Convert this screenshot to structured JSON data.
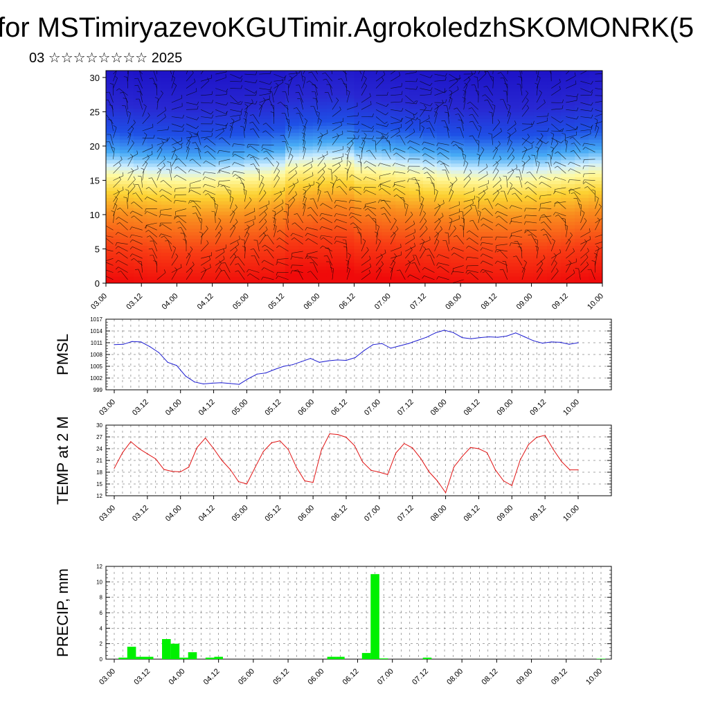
{
  "header": {
    "title": "for MSTimiryazevoKGUTimir.AgrokoledzhSKOMONRK(5",
    "subtitle": "03 ☆☆☆☆☆☆☆☆ 2025"
  },
  "colors": {
    "pmsl_line": "#1c1cd0",
    "temp_line": "#e01010",
    "precip_bar": "#00f000",
    "axis": "#000000"
  },
  "chart_data": [
    {
      "type": "heatmap",
      "name": "cross-section",
      "title": "",
      "xlabel": "",
      "ylabel": "",
      "ylim": [
        0,
        31
      ],
      "yticks": [
        0,
        5,
        10,
        15,
        20,
        25,
        30
      ],
      "xticks": [
        "03.00",
        "03.12",
        "04.00",
        "04.12",
        "05.00",
        "05.12",
        "06.00",
        "06.12",
        "07.00",
        "07.12",
        "08.00",
        "08.12",
        "09.00",
        "09.12",
        "10.00"
      ],
      "colorscale": [
        {
          "level": 0,
          "color": "#f00a0a"
        },
        {
          "level": 5,
          "color": "#f83c14"
        },
        {
          "level": 10,
          "color": "#f98c1e"
        },
        {
          "level": 13,
          "color": "#fcd232"
        },
        {
          "level": 15.5,
          "color": "#fffaa0"
        },
        {
          "level": 17,
          "color": "#d2f0ff"
        },
        {
          "level": 19,
          "color": "#46aaf5"
        },
        {
          "level": 22,
          "color": "#1e50e6"
        },
        {
          "level": 26,
          "color": "#2828d2"
        },
        {
          "level": 31,
          "color": "#1e14c8"
        }
      ]
    },
    {
      "type": "line",
      "name": "pmsl",
      "ylabel": "PMSL",
      "ylim": [
        999,
        1017
      ],
      "yticks": [
        999,
        1002,
        1005,
        1008,
        1011,
        1014,
        1017
      ],
      "xticks": [
        "03.00",
        "03.12",
        "04.00",
        "04.12",
        "05.00",
        "05.12",
        "06.00",
        "06.12",
        "07.00",
        "07.12",
        "08.00",
        "08.12",
        "09.00",
        "09.12",
        "10.00"
      ],
      "values": [
        1010.5,
        1010.6,
        1011.3,
        1011.2,
        1010.0,
        1008.5,
        1006.0,
        1005.2,
        1002.5,
        1001.0,
        1000.5,
        1000.7,
        1000.8,
        1000.6,
        1000.4,
        1001.8,
        1003.0,
        1003.3,
        1004.2,
        1005.0,
        1005.4,
        1006.2,
        1007.0,
        1006.0,
        1006.4,
        1006.6,
        1006.5,
        1007.2,
        1009.0,
        1010.5,
        1010.8,
        1009.6,
        1010.2,
        1010.8,
        1011.6,
        1012.4,
        1013.5,
        1014.2,
        1013.6,
        1012.3,
        1012.0,
        1012.3,
        1012.5,
        1012.4,
        1012.7,
        1013.5,
        1012.5,
        1011.5,
        1010.9,
        1011.2,
        1011.1,
        1010.6,
        1011.0
      ]
    },
    {
      "type": "line",
      "name": "temp",
      "ylabel": "TEMP at 2 M",
      "ylim": [
        12,
        30
      ],
      "yticks": [
        12,
        15,
        18,
        21,
        24,
        27,
        30
      ],
      "xticks": [
        "03.00",
        "03.12",
        "04.00",
        "04.12",
        "05.00",
        "05.12",
        "06.00",
        "06.12",
        "07.00",
        "07.12",
        "08.00",
        "08.12",
        "09.00",
        "09.12",
        "10.00"
      ],
      "values": [
        19.0,
        23.0,
        25.8,
        24.0,
        22.7,
        21.4,
        18.7,
        18.2,
        18.1,
        19.3,
        24.3,
        26.7,
        24.0,
        21.0,
        18.7,
        15.6,
        15.0,
        19.2,
        23.3,
        25.5,
        26.0,
        23.8,
        19.2,
        15.8,
        15.4,
        23.6,
        27.8,
        27.6,
        26.9,
        24.8,
        20.6,
        18.5,
        18.0,
        17.4,
        22.9,
        25.3,
        24.2,
        21.5,
        18.1,
        15.8,
        12.8,
        19.3,
        22.0,
        24.3,
        24.0,
        23.0,
        18.6,
        15.8,
        14.6,
        21.1,
        25.0,
        26.9,
        27.4,
        23.8,
        20.7,
        18.6,
        18.6
      ]
    },
    {
      "type": "bar",
      "name": "precip",
      "ylabel": "PRECIP, mm",
      "ylim": [
        0,
        12
      ],
      "yticks": [
        0,
        2,
        4,
        6,
        8,
        10,
        12
      ],
      "xticks": [
        "03.00",
        "03.12",
        "04.00",
        "04.12",
        "05.00",
        "05.12",
        "06.00",
        "06.12",
        "07.00",
        "07.12",
        "08.00",
        "08.12",
        "09.00",
        "09.12",
        "10.00"
      ],
      "values": [
        0,
        0.2,
        1.6,
        0.3,
        0.3,
        0,
        2.6,
        2.0,
        0.2,
        0.9,
        0,
        0.2,
        0.3,
        0,
        0,
        0,
        0,
        0,
        0,
        0,
        0,
        0,
        0,
        0,
        0,
        0.3,
        0.3,
        0,
        0,
        0.8,
        11.0,
        0.1,
        0,
        0,
        0,
        0,
        0.2,
        0,
        0,
        0,
        0,
        0,
        0,
        0,
        0,
        0,
        0,
        0,
        0,
        0,
        0,
        0,
        0,
        0,
        0,
        0,
        0.05
      ]
    }
  ]
}
